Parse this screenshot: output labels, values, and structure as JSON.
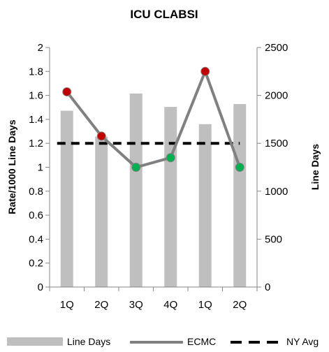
{
  "chart_data": {
    "type": "bar",
    "title": "ICU CLABSI",
    "categories": [
      "1Q",
      "2Q",
      "3Q",
      "4Q",
      "1Q",
      "2Q"
    ],
    "ylabel": "Rate/1000 Line Days",
    "y2label": "Line Days",
    "ylim": [
      0,
      2
    ],
    "y2lim": [
      0,
      2500
    ],
    "yticks": [
      "0",
      "0.2",
      "0.4",
      "0.6",
      "0.8",
      "1",
      "1.2",
      "1.4",
      "1.6",
      "1.8",
      "2"
    ],
    "y2ticks": [
      "0",
      "500",
      "1000",
      "1500",
      "2000",
      "2500"
    ],
    "series": [
      {
        "name": "Line Days",
        "kind": "bar",
        "axis": "right",
        "color": "#bfbfbf",
        "values": [
          1840,
          1570,
          2020,
          1880,
          1700,
          1910
        ]
      },
      {
        "name": "ECMC",
        "kind": "line",
        "axis": "left",
        "color": "#808080",
        "values": [
          1.63,
          1.26,
          1.0,
          1.08,
          1.8,
          1.0
        ],
        "marker_colors": [
          "#c00000",
          "#c00000",
          "#00b050",
          "#00b050",
          "#c00000",
          "#00b050"
        ]
      },
      {
        "name": "NY Avg",
        "kind": "line",
        "axis": "left",
        "style": "dashed",
        "color": "#000000",
        "values": [
          1.2,
          1.2,
          1.2,
          1.2,
          1.2,
          1.2
        ]
      }
    ],
    "grid": false,
    "legend": "bottom"
  }
}
